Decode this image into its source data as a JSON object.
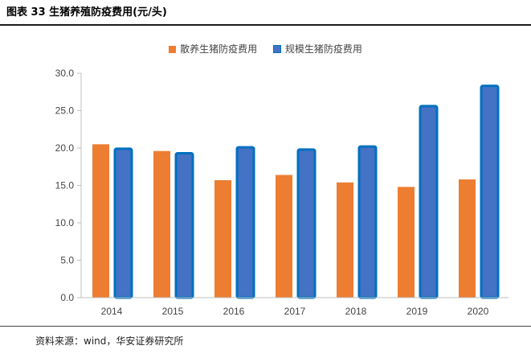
{
  "figure_title": "图表 33 生猪养殖防疫费用(元/头)",
  "source_note": "资料来源：wind，华安证券研究所",
  "colors": {
    "series_1": "#ED7D31",
    "series_2": "#4472C4",
    "series_2_border": "#0070C0"
  },
  "chart_data": {
    "type": "bar",
    "title": "",
    "xlabel": "",
    "ylabel": "",
    "categories": [
      "2014",
      "2015",
      "2016",
      "2017",
      "2018",
      "2019",
      "2020"
    ],
    "series": [
      {
        "name": "散养生猪防疫费用",
        "values": [
          20.5,
          19.6,
          15.7,
          16.4,
          15.4,
          14.8,
          15.8
        ]
      },
      {
        "name": "规模生猪防疫费用",
        "values": [
          19.9,
          19.3,
          20.1,
          19.8,
          20.2,
          25.6,
          28.3
        ]
      }
    ],
    "ylim": [
      0,
      30
    ],
    "yticks": [
      "0.0",
      "5.0",
      "10.0",
      "15.0",
      "20.0",
      "25.0",
      "30.0"
    ],
    "legend_position": "top-center",
    "grid": false
  }
}
